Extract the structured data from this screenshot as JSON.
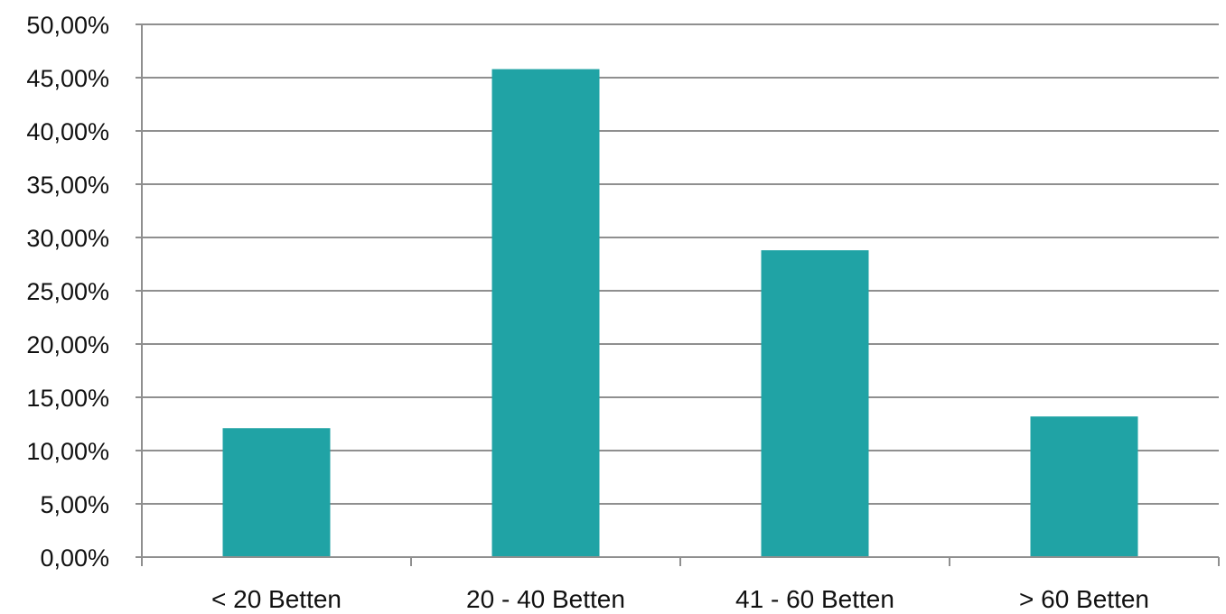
{
  "chart_data": {
    "type": "bar",
    "categories": [
      "< 20 Betten",
      "20 - 40 Betten",
      "41 - 60 Betten",
      "> 60 Betten"
    ],
    "values": [
      12.1,
      45.8,
      28.8,
      13.2
    ],
    "ylim": [
      0,
      50
    ],
    "y_tick_values": [
      0,
      5,
      10,
      15,
      20,
      25,
      30,
      35,
      40,
      45,
      50
    ],
    "y_tick_labels": [
      "0,00%",
      "5,00%",
      "10,00%",
      "15,00%",
      "20,00%",
      "25,00%",
      "30,00%",
      "35,00%",
      "40,00%",
      "45,00%",
      "50,00%"
    ],
    "grid": true,
    "legend": "none",
    "colors": {
      "bar": "#20a3a5",
      "grid": "#8f8f8f",
      "text": "#111111"
    }
  }
}
